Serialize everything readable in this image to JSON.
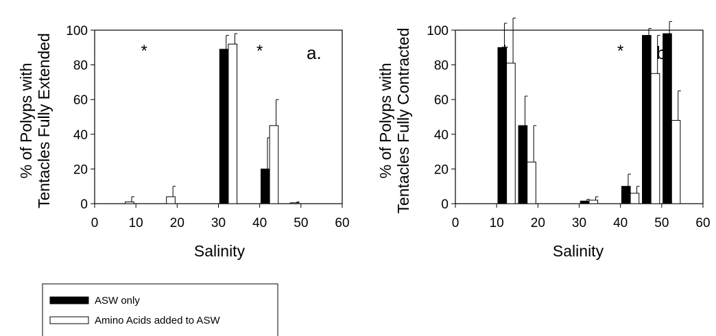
{
  "chart_data": [
    {
      "type": "bar",
      "panel_label": "a.",
      "xlabel": "Salinity",
      "ylabel_line1": "% of Polyps with",
      "ylabel_line2": "Tentacles Fully Extended",
      "xlim": [
        0,
        60
      ],
      "ylim": [
        0,
        100
      ],
      "xticks": [
        0,
        10,
        20,
        30,
        40,
        50,
        60
      ],
      "yticks": [
        0,
        20,
        40,
        60,
        80,
        100
      ],
      "significance_at": [
        12,
        40
      ],
      "significance_mark": "*",
      "x": [
        5,
        10,
        15,
        20,
        25,
        30,
        35,
        40,
        45,
        50
      ],
      "series": [
        {
          "name": "ASW only",
          "color": "#000000",
          "values": [
            0,
            0,
            0,
            0,
            0,
            89,
            0,
            20,
            0,
            0
          ],
          "errors": [
            0,
            0,
            0,
            0,
            0,
            8,
            0,
            18,
            0,
            0
          ]
        },
        {
          "name": "Amino Acids added to ASW",
          "color": "#ffffff",
          "values": [
            1,
            0,
            4,
            0,
            0,
            92,
            0,
            45,
            0.5,
            0
          ],
          "errors": [
            3,
            0,
            6,
            0,
            0,
            6,
            0,
            15,
            0.5,
            0
          ]
        }
      ]
    },
    {
      "type": "bar",
      "panel_label": "b.",
      "xlabel": "Salinity",
      "ylabel_line1": "% of Polyps with",
      "ylabel_line2": "Tentacles Fully Contracted",
      "xlim": [
        0,
        60
      ],
      "ylim": [
        0,
        100
      ],
      "xticks": [
        0,
        10,
        20,
        30,
        40,
        50,
        60
      ],
      "yticks": [
        0,
        20,
        40,
        60,
        80,
        100
      ],
      "significance_at": [
        12,
        40,
        46
      ],
      "significance_mark": "*",
      "x": [
        5,
        10,
        15,
        20,
        25,
        30,
        35,
        40,
        45,
        50
      ],
      "series": [
        {
          "name": "ASW only",
          "color": "#000000",
          "values": [
            0,
            90,
            45,
            0,
            0,
            1.5,
            0,
            10,
            97,
            98
          ],
          "errors": [
            0,
            14,
            17,
            0,
            0,
            1,
            0,
            7,
            4,
            7
          ]
        },
        {
          "name": "Amino Acids added to ASW",
          "color": "#ffffff",
          "values": [
            0,
            81,
            24,
            0,
            0,
            2,
            0,
            6,
            75,
            48
          ],
          "errors": [
            0,
            26,
            21,
            0,
            0,
            2,
            0,
            4,
            22,
            17
          ]
        }
      ]
    }
  ],
  "legend": {
    "items": [
      {
        "label": "ASW only",
        "color": "#000000"
      },
      {
        "label": "Amino Acids added to ASW",
        "color": "#ffffff"
      }
    ]
  }
}
